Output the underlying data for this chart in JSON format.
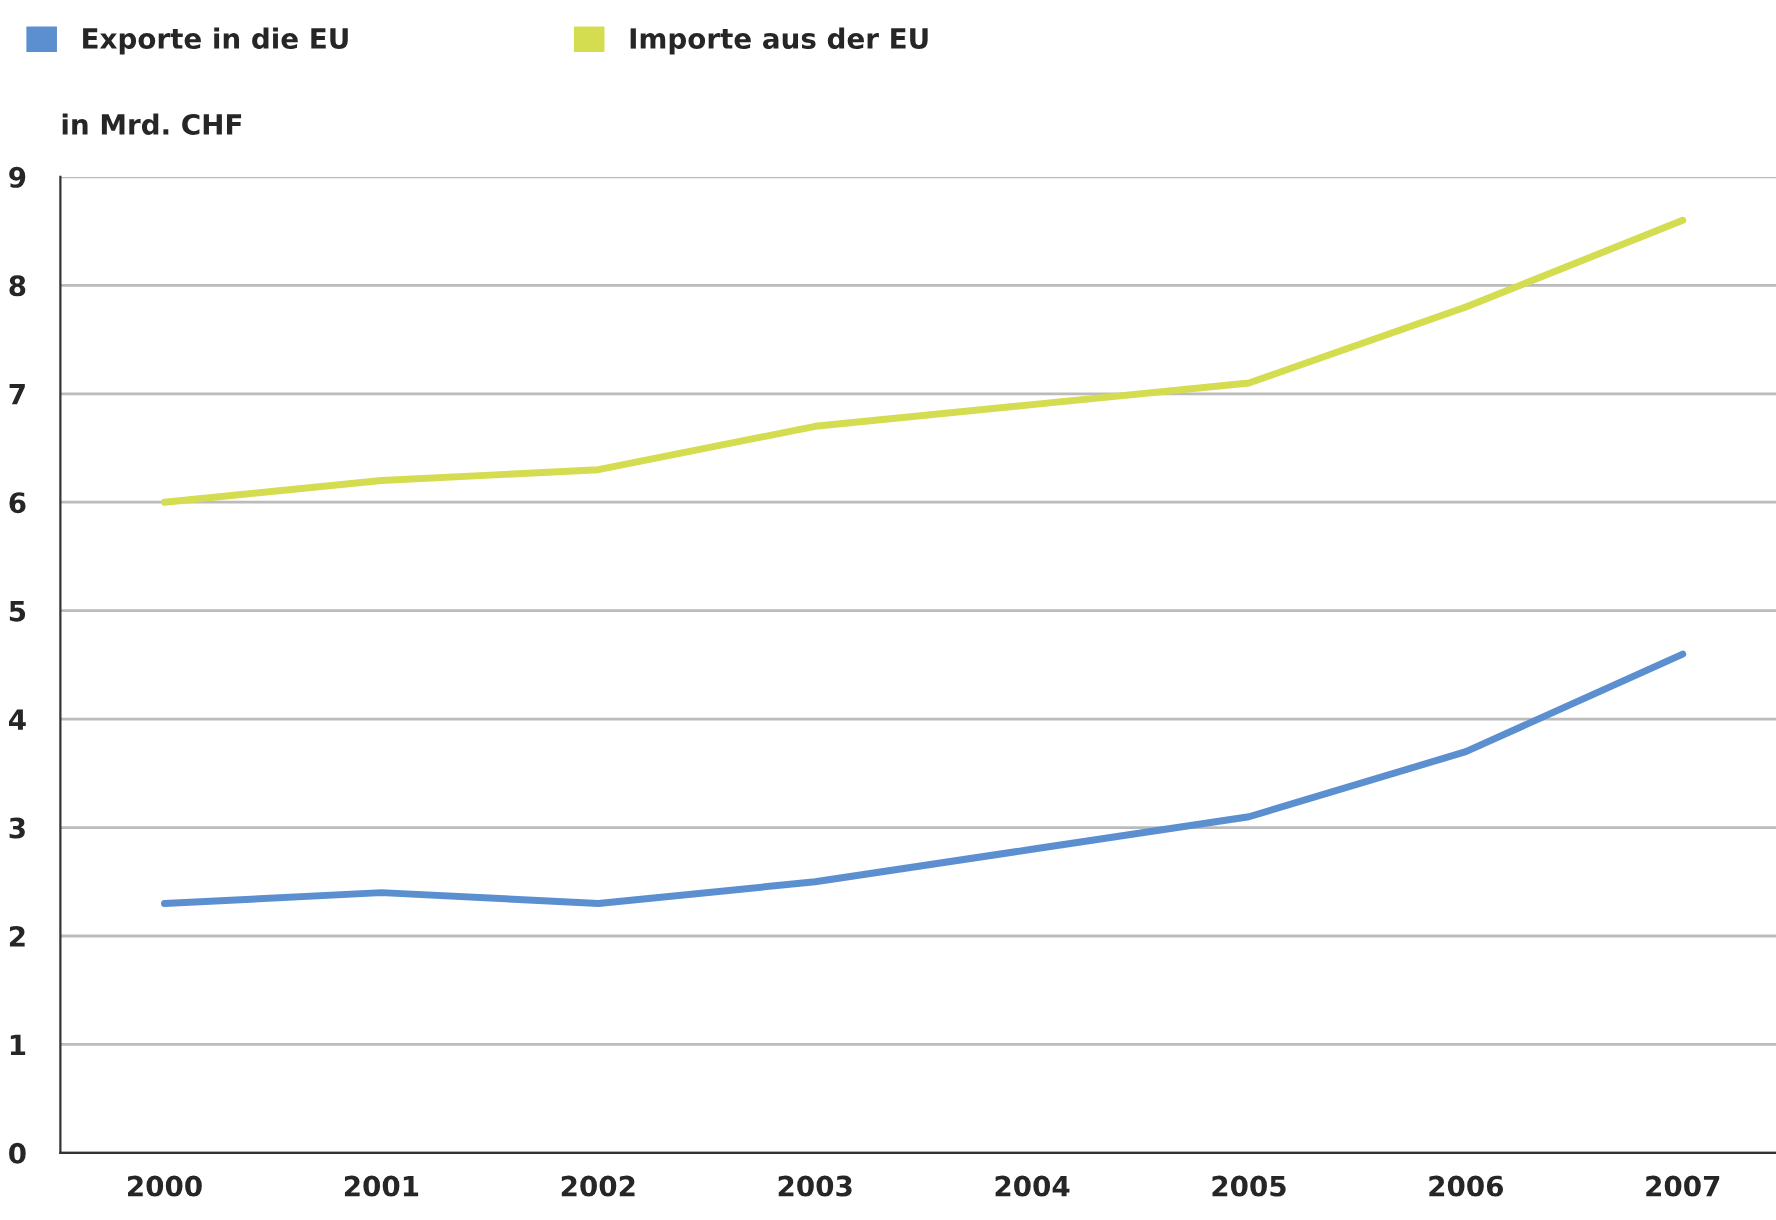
{
  "chart_data": {
    "type": "line",
    "ylabel": "in Mrd. CHF",
    "categories": [
      "2000",
      "2001",
      "2002",
      "2003",
      "2004",
      "2005",
      "2006",
      "2007"
    ],
    "series": [
      {
        "name": "Exporte in die EU",
        "color": "#5b8fd0",
        "values": [
          2.3,
          2.4,
          2.3,
          2.5,
          2.8,
          3.1,
          3.7,
          4.6
        ]
      },
      {
        "name": "Importe aus der EU",
        "color": "#d4dc50",
        "values": [
          6.0,
          6.2,
          6.3,
          6.7,
          6.9,
          7.1,
          7.8,
          8.6
        ]
      }
    ],
    "ylim": [
      0,
      9
    ],
    "yticks": [
      0,
      1,
      2,
      3,
      4,
      5,
      6,
      7,
      8,
      9
    ],
    "grid": "y",
    "legend": "top left",
    "marker": "none"
  }
}
